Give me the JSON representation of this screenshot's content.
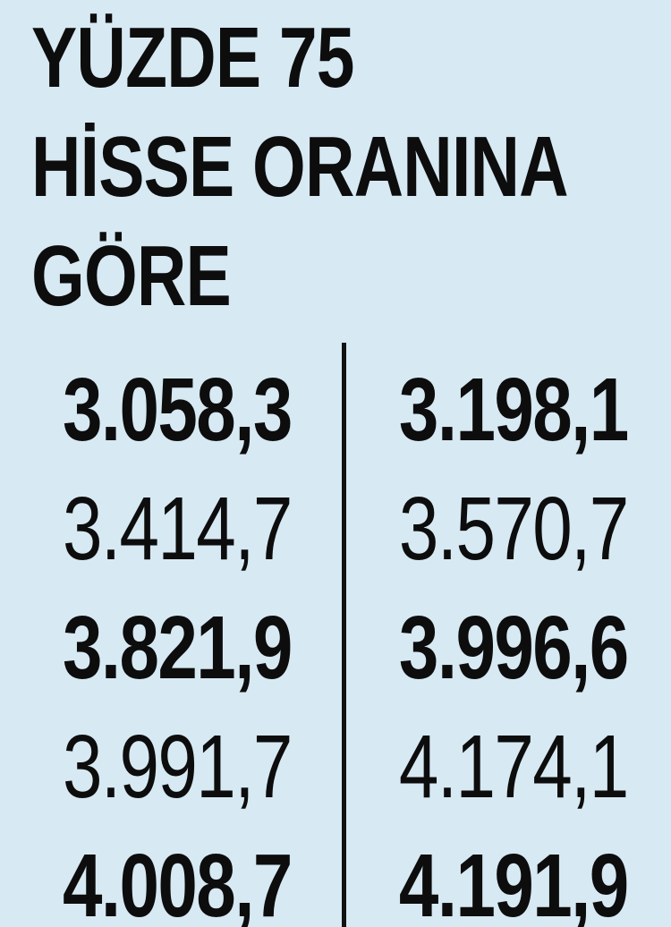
{
  "page": {
    "background": "#d7e9f3",
    "text_color": "#0d0d0d",
    "divider_color": "#121212"
  },
  "title": {
    "lines": [
      "YÜZDE 75",
      "HİSSE ORANINA",
      "GÖRE"
    ]
  },
  "table": {
    "rows": [
      {
        "left": "3.058,3",
        "right": "3.198,1"
      },
      {
        "left": "3.414,7",
        "right": "3.570,7"
      },
      {
        "left": "3.821,9",
        "right": "3.996,6"
      },
      {
        "left": "3.991,7",
        "right": "4.174,1"
      },
      {
        "left": "4.008,7",
        "right": "4.191,9"
      }
    ]
  },
  "chart_data": {
    "type": "table",
    "title": "YÜZDE 75 HİSSE ORANINA GÖRE",
    "columns": [
      "col-1",
      "col-2"
    ],
    "rows": [
      [
        "3.058,3",
        "3.198,1"
      ],
      [
        "3.414,7",
        "3.570,7"
      ],
      [
        "3.821,9",
        "3.996,6"
      ],
      [
        "3.991,7",
        "4.174,1"
      ],
      [
        "4.008,7",
        "4.191,9"
      ]
    ],
    "values_numeric": [
      [
        3058.3,
        3198.1
      ],
      [
        3414.7,
        3570.7
      ],
      [
        3821.9,
        3996.6
      ],
      [
        3991.7,
        4174.1
      ],
      [
        4008.7,
        4191.9
      ]
    ],
    "layout_hints": {
      "bold_rows": [
        0,
        2,
        4
      ],
      "left_column_align": "left",
      "right_column_align": "right",
      "divider": "vertical-black-rule"
    }
  }
}
